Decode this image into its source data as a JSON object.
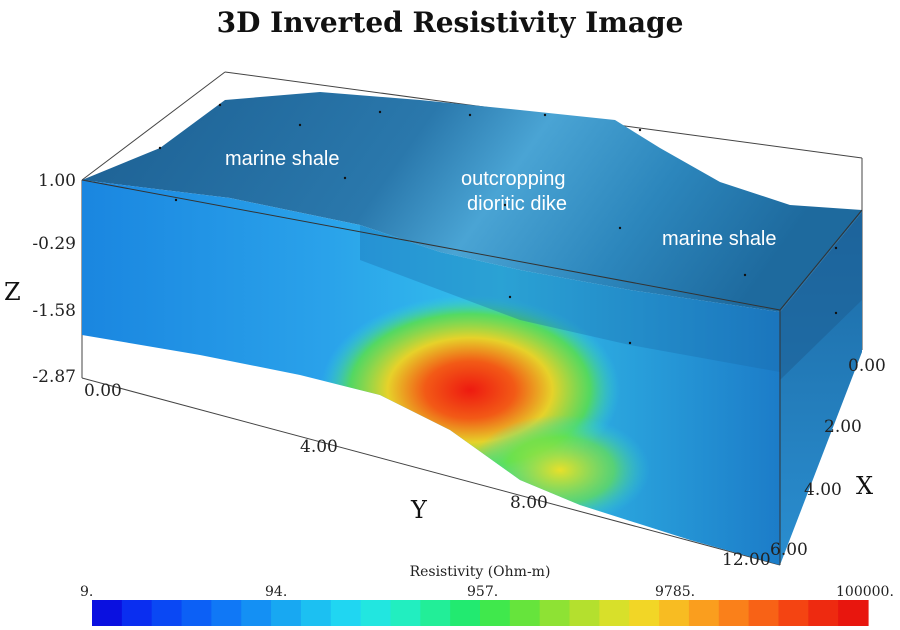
{
  "title": "3D Inverted Resistivity Image",
  "axes": {
    "z": {
      "name": "Z",
      "ticks": [
        "1.00",
        "-0.29",
        "-1.58",
        "-2.87"
      ]
    },
    "y": {
      "name": "Y",
      "ticks": [
        "0.00",
        "4.00",
        "8.00",
        "12.00"
      ]
    },
    "x": {
      "name": "X",
      "ticks": [
        "0.00",
        "2.00",
        "4.00",
        "6.00"
      ]
    }
  },
  "annotations": [
    "marine shale",
    "outcropping",
    "dioritic dike",
    "marine shale"
  ],
  "colorbar": {
    "title": "Resistivity (Ohm-m)",
    "ticks": [
      "9.",
      "94.",
      "957.",
      "9785.",
      "100000."
    ],
    "colors": [
      "#0a10e0",
      "#0a2ef0",
      "#0a48f4",
      "#0c60f6",
      "#1078f6",
      "#1490f4",
      "#18a8f2",
      "#1cc0f2",
      "#20d6f2",
      "#22e6e0",
      "#22eec0",
      "#22ee98",
      "#22ea70",
      "#40e84c",
      "#66e43c",
      "#8ee234",
      "#b4e02e",
      "#d8e02a",
      "#f2d626",
      "#f8bc22",
      "#fa9e1e",
      "#fa801a",
      "#f86216",
      "#f44412",
      "#ee2a10",
      "#e8160e"
    ]
  }
}
